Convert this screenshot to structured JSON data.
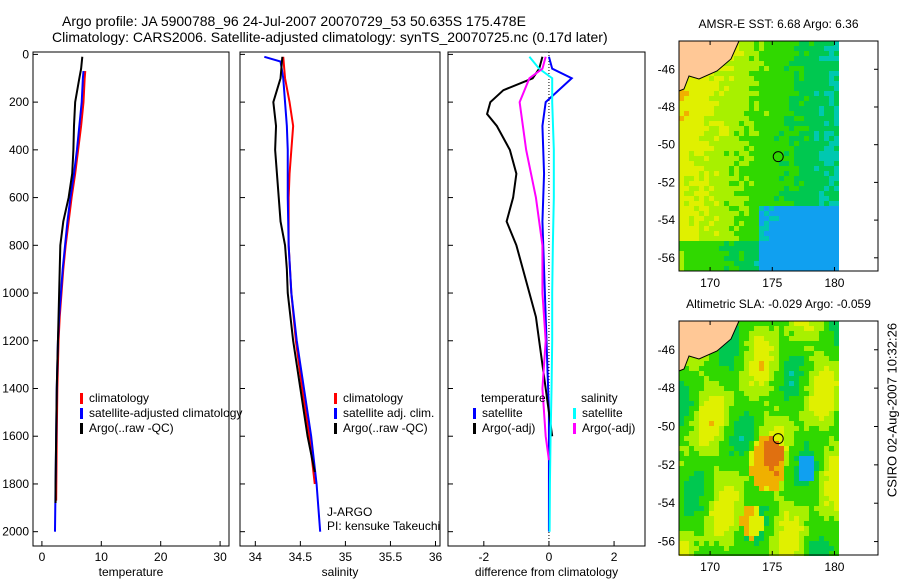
{
  "title": {
    "line1": "Argo profile: JA 5900788_96 24-Jul-2007 20070729_53 50.635S 175.478E",
    "line2": "Climatology: CARS2006. Satellite-adjusted climatology: synTS_20070725.nc (0.17d later)"
  },
  "footer": "CSIRO 02-Aug-2007 10:32:26",
  "colors": {
    "red": "#ff0000",
    "blue": "#0000ff",
    "black": "#000000",
    "cyan": "#00ffff",
    "magenta": "#ff00ff"
  },
  "chart_data": [
    {
      "type": "line",
      "xlabel": "temperature",
      "ylabel": "",
      "xlim": [
        -1.5,
        31.5
      ],
      "ylim": [
        -10,
        2060
      ],
      "y_reversed": true,
      "xticks": [
        "0",
        "10",
        "20",
        "30"
      ],
      "xtick_values": [
        0,
        10,
        20,
        30
      ],
      "yticks": [
        "0",
        "200",
        "400",
        "600",
        "800",
        "1000",
        "1200",
        "1400",
        "1600",
        "1800",
        "2000"
      ],
      "legend": {
        "placement": "lower-middle",
        "entries": [
          "climatology",
          "satellite-adjusted climatology",
          "Argo(..raw -QC)"
        ]
      },
      "series": [
        {
          "name": "climatology",
          "color": "#ff0000",
          "depth": [
            70,
            100,
            200,
            300,
            400,
            500,
            600,
            700,
            800,
            900,
            1000,
            1100,
            1200,
            1400,
            1600,
            1870
          ],
          "value": [
            7.3,
            7.2,
            7.0,
            6.6,
            6.1,
            5.6,
            5.0,
            4.5,
            4.0,
            3.6,
            3.3,
            3.0,
            2.8,
            2.6,
            2.5,
            2.4
          ]
        },
        {
          "name": "satellite-adjusted climatology",
          "color": "#0000ff",
          "depth": [
            70,
            100,
            200,
            300,
            400,
            500,
            600,
            700,
            800,
            900,
            1000,
            1100,
            1200,
            1400,
            1600,
            1800,
            2000
          ],
          "value": [
            7.0,
            6.9,
            6.7,
            6.3,
            5.9,
            5.4,
            4.8,
            4.3,
            3.9,
            3.5,
            3.2,
            2.9,
            2.7,
            2.5,
            2.4,
            2.3,
            2.2
          ]
        },
        {
          "name": "Argo(..raw -QC)",
          "color": "#000000",
          "depth": [
            10,
            60,
            100,
            200,
            300,
            400,
            500,
            600,
            700,
            800,
            900,
            1000,
            1100,
            1200,
            1400,
            1600,
            1800,
            1880
          ],
          "value": [
            6.8,
            6.6,
            6.3,
            5.6,
            5.4,
            5.3,
            5.1,
            4.5,
            3.6,
            3.1,
            3.0,
            2.9,
            2.8,
            2.7,
            2.5,
            2.4,
            2.3,
            2.3
          ]
        }
      ]
    },
    {
      "type": "line",
      "xlabel": "salinity",
      "ylabel": "",
      "xlim": [
        33.83,
        36.05
      ],
      "ylim": [
        -10,
        2060
      ],
      "y_reversed": true,
      "xticks": [
        "34",
        "34.5",
        "35",
        "35.5",
        "36"
      ],
      "xtick_values": [
        34,
        34.5,
        35,
        35.5,
        36
      ],
      "legend": {
        "placement": "lower-right",
        "entries": [
          "climatology",
          "satellite adj. clim.",
          "Argo(..raw -QC)"
        ]
      },
      "annotation": [
        "J-ARGO",
        "PI: kensuke Takeuchi"
      ],
      "series": [
        {
          "name": "climatology",
          "color": "#ff0000",
          "depth": [
            10,
            100,
            200,
            300,
            400,
            500,
            600,
            800,
            1000,
            1200,
            1400,
            1600,
            1800
          ],
          "value": [
            34.31,
            34.33,
            34.38,
            34.42,
            34.4,
            34.38,
            34.37,
            34.37,
            34.4,
            34.45,
            34.52,
            34.6,
            34.66
          ]
        },
        {
          "name": "satellite adj. clim.",
          "color": "#0000ff",
          "depth": [
            10,
            30,
            100,
            200,
            300,
            400,
            600,
            800,
            1000,
            1200,
            1400,
            1600,
            1800,
            2000
          ],
          "value": [
            34.1,
            34.28,
            34.31,
            34.33,
            34.35,
            34.36,
            34.36,
            34.37,
            34.4,
            34.46,
            34.54,
            34.62,
            34.68,
            34.72
          ]
        },
        {
          "name": "Argo(..raw -QC)",
          "color": "#000000",
          "depth": [
            10,
            100,
            200,
            300,
            400,
            500,
            600,
            700,
            800,
            900,
            1000,
            1200,
            1400,
            1600,
            1750
          ],
          "value": [
            34.3,
            34.28,
            34.2,
            34.23,
            34.22,
            34.24,
            34.26,
            34.28,
            34.33,
            34.35,
            34.36,
            34.42,
            34.5,
            34.58,
            34.66
          ]
        }
      ]
    },
    {
      "type": "line",
      "xlabel": "difference from climatology",
      "ylabel": "",
      "xlim": [
        -3.1,
        2.95
      ],
      "ylim": [
        -10,
        2060
      ],
      "y_reversed": true,
      "xticks": [
        "-2",
        "0",
        "2"
      ],
      "xtick_values": [
        -2,
        0,
        2
      ],
      "legend": {
        "placement": "lower-middle",
        "groups": [
          {
            "title": "temperature",
            "entries": [
              "satellite",
              "Argo(-adj)"
            ]
          },
          {
            "title": "salinity",
            "entries": [
              "satellite",
              "Argo(-adj)"
            ]
          }
        ]
      },
      "series": [
        {
          "name": "temperature satellite",
          "color": "#0000ff",
          "depth": [
            10,
            60,
            100,
            200,
            300,
            500,
            700,
            900,
            1100,
            1300,
            1500,
            1700,
            2000
          ],
          "value": [
            0.0,
            0.1,
            0.7,
            -0.1,
            -0.2,
            -0.15,
            -0.2,
            -0.15,
            -0.1,
            -0.05,
            0.0,
            0.0,
            0.0
          ]
        },
        {
          "name": "temperature Argo(-adj)",
          "color": "#000000",
          "depth": [
            10,
            60,
            100,
            150,
            200,
            250,
            300,
            400,
            500,
            600,
            700,
            800,
            900,
            1000,
            1100,
            1200,
            1300,
            1400,
            1500,
            1600
          ],
          "value": [
            -0.2,
            -0.3,
            -0.5,
            -1.4,
            -1.8,
            -1.9,
            -1.6,
            -1.2,
            -1.0,
            -1.1,
            -1.3,
            -1.0,
            -0.8,
            -0.6,
            -0.4,
            -0.3,
            -0.2,
            -0.1,
            0.0,
            0.1
          ]
        },
        {
          "name": "salinity satellite",
          "color": "#00ffff",
          "depth": [
            10,
            60,
            100,
            200,
            400,
            600,
            800,
            1000,
            1200,
            1400,
            1600,
            1800,
            2000
          ],
          "value": [
            -0.6,
            -0.3,
            0.1,
            0.1,
            0.15,
            0.15,
            0.12,
            0.1,
            0.1,
            0.08,
            0.05,
            0.03,
            0.02
          ]
        },
        {
          "name": "salinity Argo(-adj)",
          "color": "#ff00ff",
          "depth": [
            10,
            60,
            100,
            200,
            300,
            400,
            600,
            800,
            1000,
            1200,
            1400,
            1600,
            1700
          ],
          "value": [
            -0.1,
            -0.2,
            -0.6,
            -0.9,
            -0.8,
            -0.7,
            -0.4,
            -0.2,
            -0.2,
            -0.1,
            -0.2,
            -0.1,
            0.0
          ]
        }
      ]
    },
    {
      "type": "heatmap",
      "title": "AMSR-E SST: 6.68 Argo: 6.36",
      "xlim": [
        167.5,
        183.5
      ],
      "ylim": [
        -56.7,
        -44.5
      ],
      "xticks": [
        "170",
        "175",
        "180"
      ],
      "xtick_values": [
        170,
        175,
        180
      ],
      "yticks": [
        "-46",
        "-48",
        "-50",
        "-52",
        "-54",
        "-56"
      ],
      "ytick_values": [
        -46,
        -48,
        -50,
        -52,
        -54,
        -56
      ],
      "marker": {
        "lon": 175.478,
        "lat": -50.635
      }
    },
    {
      "type": "heatmap",
      "title": "Altimetric SLA: -0.029 Argo: -0.059",
      "xlim": [
        167.5,
        183.5
      ],
      "ylim": [
        -56.7,
        -44.5
      ],
      "xticks": [
        "170",
        "175",
        "180"
      ],
      "xtick_values": [
        170,
        175,
        180
      ],
      "yticks": [
        "-46",
        "-48",
        "-50",
        "-52",
        "-54",
        "-56"
      ],
      "ytick_values": [
        -46,
        -48,
        -50,
        -52,
        -54,
        -56
      ],
      "marker": {
        "lon": 175.478,
        "lat": -50.635
      }
    }
  ]
}
